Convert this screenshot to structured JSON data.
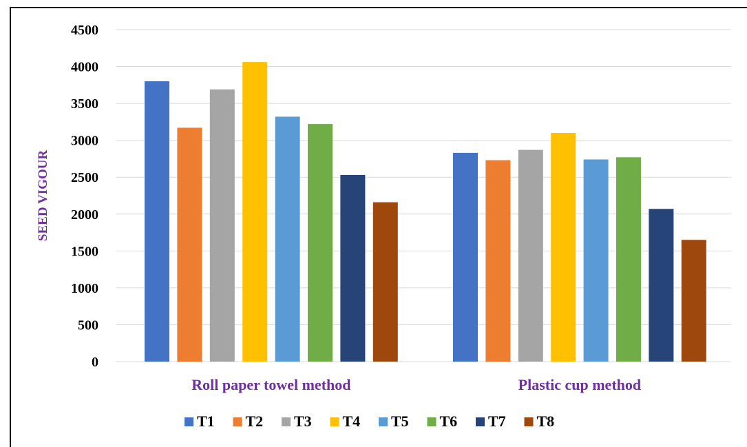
{
  "chart_data": {
    "type": "bar",
    "title": "",
    "xlabel": "",
    "ylabel": "SEED VIGOUR",
    "ylim": [
      0,
      4500
    ],
    "yticks": [
      0,
      500,
      1000,
      1500,
      2000,
      2500,
      3000,
      3500,
      4000,
      4500
    ],
    "grid": true,
    "legend_position": "bottom",
    "categories": [
      "Roll paper towel method",
      "Plastic cup method"
    ],
    "series": [
      {
        "name": "T1",
        "color": "#4472C4",
        "values": [
          3800,
          2830
        ]
      },
      {
        "name": "T2",
        "color": "#ED7D31",
        "values": [
          3170,
          2730
        ]
      },
      {
        "name": "T3",
        "color": "#A5A5A5",
        "values": [
          3690,
          2870
        ]
      },
      {
        "name": "T4",
        "color": "#FFC000",
        "values": [
          4060,
          3100
        ]
      },
      {
        "name": "T5",
        "color": "#5B9BD5",
        "values": [
          3320,
          2740
        ]
      },
      {
        "name": "T6",
        "color": "#70AD47",
        "values": [
          3220,
          2770
        ]
      },
      {
        "name": "T7",
        "color": "#264478",
        "values": [
          2530,
          2070
        ]
      },
      {
        "name": "T8",
        "color": "#9E480E",
        "values": [
          2160,
          1650
        ]
      }
    ],
    "colors": {
      "category_label": "#7030A0",
      "ylabel": "#7030A0",
      "tick_label": "#000000",
      "gridline": "#D9D9D9"
    }
  }
}
